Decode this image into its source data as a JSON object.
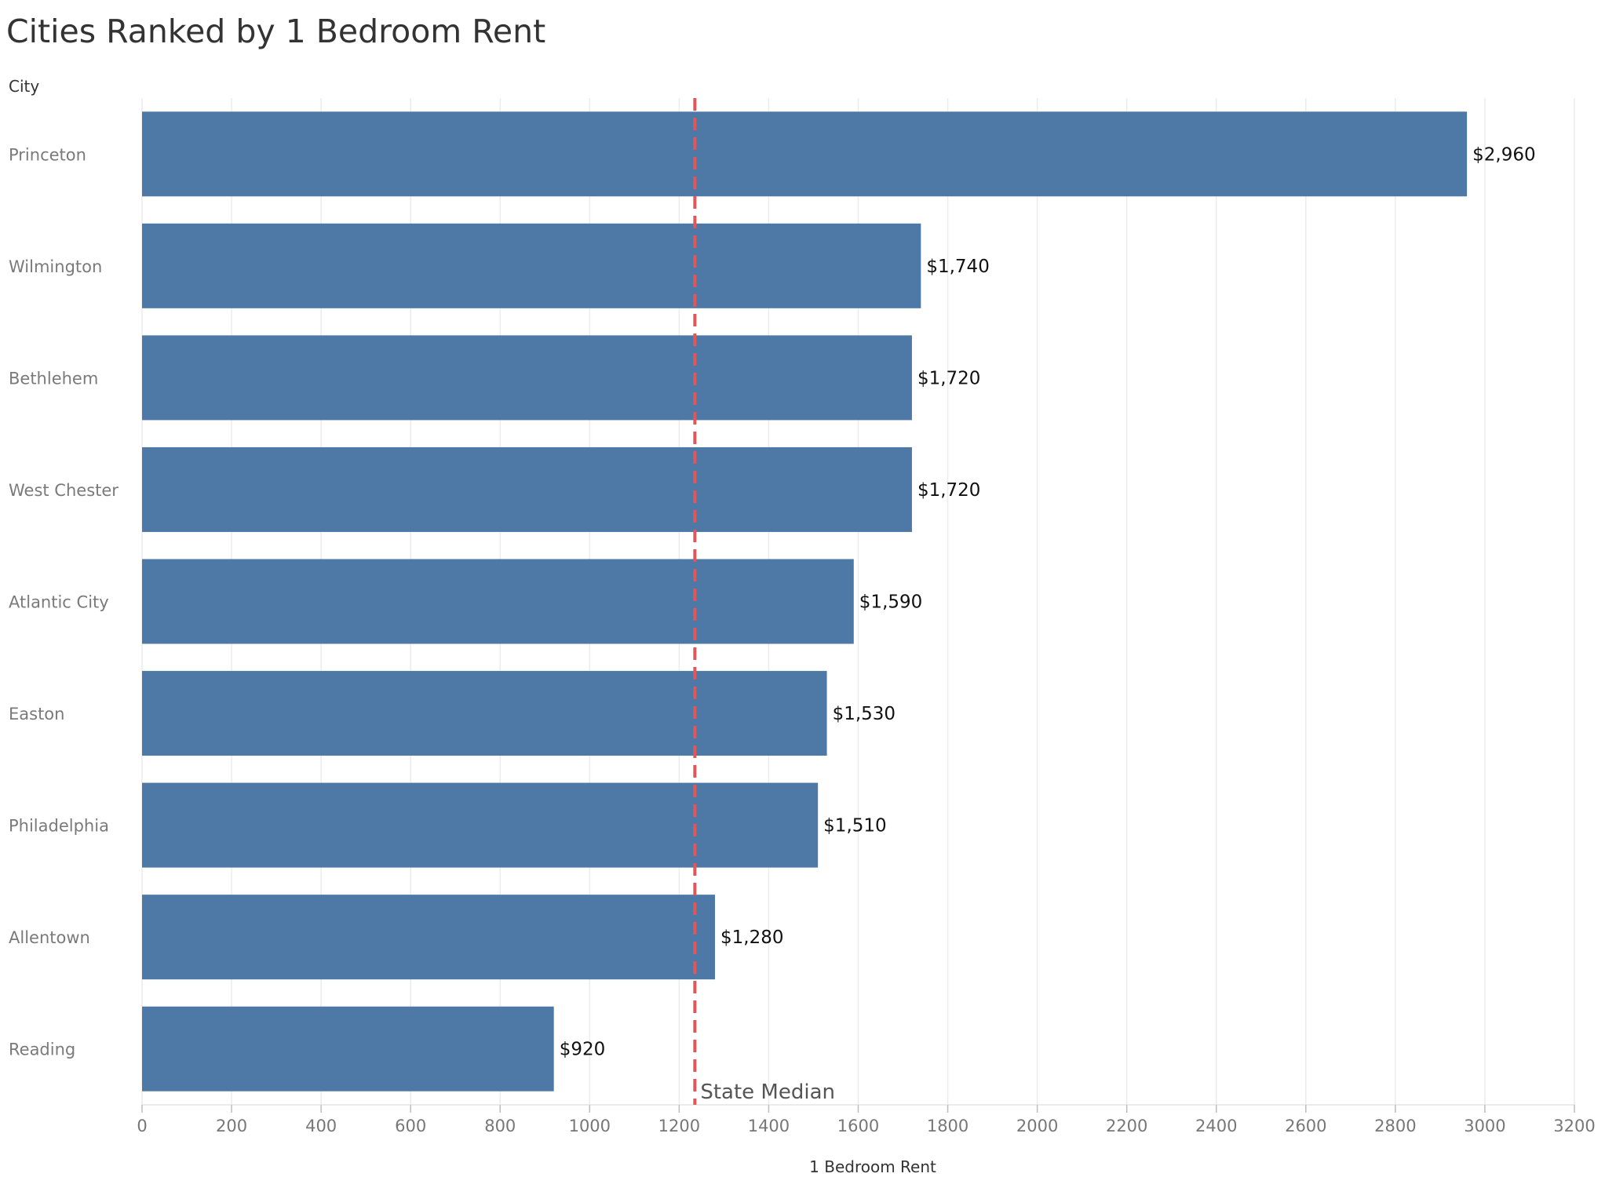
{
  "chart_data": {
    "type": "bar",
    "orientation": "horizontal",
    "title": "Cities Ranked by 1 Bedroom Rent",
    "ylabel": "City",
    "xlabel": "1 Bedroom Rent",
    "categories": [
      "Princeton",
      "Wilmington",
      "Bethlehem",
      "West Chester",
      "Atlantic City",
      "Easton",
      "Philadelphia",
      "Allentown",
      "Reading"
    ],
    "values": [
      2960,
      1740,
      1720,
      1720,
      1590,
      1530,
      1510,
      1280,
      920
    ],
    "value_labels": [
      "$2,960",
      "$1,740",
      "$1,720",
      "$1,720",
      "$1,590",
      "$1,530",
      "$1,510",
      "$1,280",
      "$920"
    ],
    "xlim": [
      0,
      3200
    ],
    "xticks": [
      "0",
      "200",
      "400",
      "600",
      "800",
      "1000",
      "1200",
      "1400",
      "1600",
      "1800",
      "2000",
      "2200",
      "2400",
      "2600",
      "2800",
      "3000",
      "3200"
    ],
    "reference_line": {
      "label": "State Median",
      "value": 1235,
      "color": "#e15759",
      "style": "dashed"
    },
    "bar_color": "#4e79a7",
    "grid": "vertical",
    "legend": "none"
  }
}
